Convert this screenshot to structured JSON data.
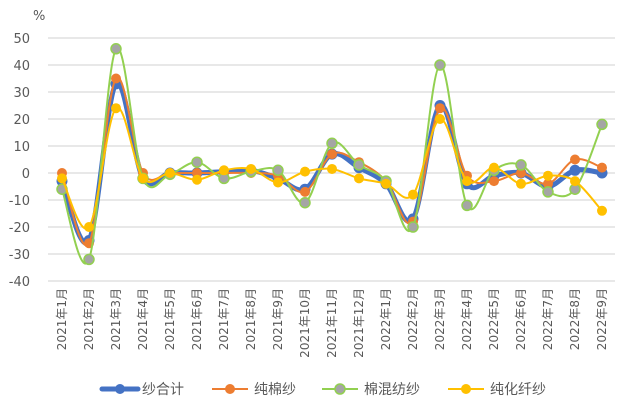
{
  "chart_data": {
    "type": "line",
    "title": "",
    "ylabel": "%",
    "xlabel": "",
    "ylim": [
      -40,
      50
    ],
    "yticks": [
      50,
      40,
      30,
      20,
      10,
      0,
      -10,
      -20,
      -30,
      -40
    ],
    "grid": true,
    "legend_position": "bottom",
    "categories": [
      "2021年1月",
      "2021年2月",
      "2021年3月",
      "2021年4月",
      "2021年5月",
      "2021年6月",
      "2021年7月",
      "2021年8月",
      "2021年9月",
      "2021年10月",
      "2021年11月",
      "2021年12月",
      "2022年1月",
      "2022年2月",
      "2022年3月",
      "2022年4月",
      "2022年5月",
      "2022年6月",
      "2022年7月",
      "2022年8月",
      "2022年9月"
    ],
    "series": [
      {
        "name": "纱合计",
        "color": "#4472C4",
        "marker": "#4472C4",
        "width": 5,
        "values": [
          -3,
          -25,
          33,
          -2,
          0,
          0,
          0.5,
          1,
          -2,
          -6,
          7,
          2,
          -4,
          -17,
          25,
          -4,
          -1,
          0,
          -5,
          1,
          0
        ]
      },
      {
        "name": "纯棉纱",
        "color": "#ED7D31",
        "marker": "#ED7D31",
        "width": 2,
        "values": [
          0,
          -26,
          35,
          0,
          0,
          0,
          0,
          0,
          -1,
          -7,
          7,
          4,
          -3,
          -18,
          24,
          -1,
          -3,
          0,
          -4,
          5,
          2
        ]
      },
      {
        "name": "棉混纺纱",
        "color": "#92D050",
        "marker": "#A5A5A5",
        "width": 2,
        "values": [
          -6,
          -32,
          46,
          -2,
          -0.5,
          4,
          -2,
          0.5,
          1,
          -11,
          11,
          3,
          -3,
          -20,
          40,
          -12,
          1,
          3,
          -7,
          -6,
          18
        ]
      },
      {
        "name": "纯化纤纱",
        "color": "#FFC000",
        "marker": "#FFC000",
        "width": 2,
        "values": [
          -2,
          -20,
          24,
          -2,
          0,
          -2.5,
          1,
          1.5,
          -3.5,
          0.5,
          1.5,
          -2,
          -4,
          -8,
          20,
          -3,
          2,
          -4,
          -1,
          -3,
          -14
        ]
      }
    ]
  },
  "axis": {
    "unit_label": "%"
  },
  "legend": {
    "items": [
      {
        "label": "纱合计"
      },
      {
        "label": "纯棉纱"
      },
      {
        "label": "棉混纺纱"
      },
      {
        "label": "纯化纤纱"
      }
    ]
  }
}
